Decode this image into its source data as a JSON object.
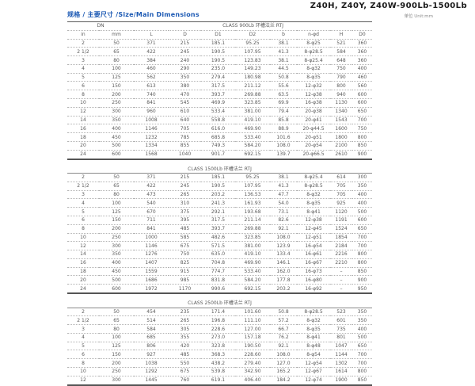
{
  "page": {
    "title": "Z40H, Z40Y, Z40W-900Lb-1500Lb",
    "section_heading": "规格 / 主要尺寸 /Size/Main Dimensions",
    "unit_label": "单位 Unit:mm"
  },
  "table": {
    "dn_label": "DN",
    "columns": [
      "in",
      "mm",
      "L",
      "D",
      "D1",
      "D2",
      "b",
      "n-φd",
      "H",
      "D0"
    ],
    "sections": [
      {
        "label": "CLASS 900Lb 环槽法兰 RTJ",
        "rows": [
          [
            "2",
            "50",
            "371",
            "215",
            "185.1",
            "95.25",
            "38.1",
            "8-φ25",
            "521",
            "360"
          ],
          [
            "2 1/2",
            "65",
            "422",
            "245",
            "190.5",
            "107.95",
            "41.3",
            "8-φ28.5",
            "584",
            "360"
          ],
          [
            "3",
            "80",
            "384",
            "240",
            "190.5",
            "123.83",
            "38.1",
            "8-φ25.4",
            "648",
            "360"
          ],
          [
            "4",
            "100",
            "460",
            "290",
            "235.0",
            "149.23",
            "44.5",
            "8-φ32",
            "750",
            "400"
          ],
          [
            "5",
            "125",
            "562",
            "350",
            "279.4",
            "180.98",
            "50.8",
            "8-φ35",
            "790",
            "460"
          ],
          [
            "6",
            "150",
            "613",
            "380",
            "317.5",
            "211.12",
            "55.6",
            "12-φ32",
            "800",
            "560"
          ],
          [
            "8",
            "200",
            "740",
            "470",
            "393.7",
            "269.88",
            "63.5",
            "12-φ38",
            "940",
            "600"
          ],
          [
            "10",
            "250",
            "841",
            "545",
            "469.9",
            "323.85",
            "69.9",
            "16-φ38",
            "1130",
            "600"
          ],
          [
            "12",
            "300",
            "960",
            "610",
            "533.4",
            "381.00",
            "79.4",
            "20-φ38",
            "1340",
            "650"
          ],
          [
            "14",
            "350",
            "1008",
            "640",
            "558.8",
            "419.10",
            "85.8",
            "20-φ41",
            "1543",
            "700"
          ],
          [
            "16",
            "400",
            "1146",
            "705",
            "616.0",
            "469.90",
            "88.9",
            "20-φ44.5",
            "1600",
            "750"
          ],
          [
            "18",
            "450",
            "1232",
            "785",
            "685.8",
            "533.40",
            "101.6",
            "20-φ51",
            "1800",
            "800"
          ],
          [
            "20",
            "500",
            "1334",
            "855",
            "749.3",
            "584.20",
            "108.0",
            "20-φ54",
            "2100",
            "850"
          ],
          [
            "24",
            "600",
            "1568",
            "1040",
            "901.7",
            "692.15",
            "139.7",
            "20-φ66.5",
            "2610",
            "900"
          ]
        ]
      },
      {
        "label": "CLASS 1500Lb 环槽法兰 RTJ",
        "rows": [
          [
            "2",
            "50",
            "371",
            "215",
            "185.1",
            "95.25",
            "38.1",
            "8-φ25.4",
            "614",
            "300"
          ],
          [
            "2 1/2",
            "65",
            "422",
            "245",
            "190.5",
            "107.95",
            "41.3",
            "8-φ28.5",
            "705",
            "350"
          ],
          [
            "3",
            "80",
            "473",
            "265",
            "203.2",
            "136.53",
            "47.7",
            "8-φ32",
            "705",
            "400"
          ],
          [
            "4",
            "100",
            "540",
            "310",
            "241.3",
            "161.93",
            "54.0",
            "8-φ35",
            "925",
            "400"
          ],
          [
            "5",
            "125",
            "670",
            "375",
            "292.1",
            "193.68",
            "73.1",
            "8-φ41",
            "1120",
            "500"
          ],
          [
            "6",
            "150",
            "711",
            "395",
            "317.5",
            "211.14",
            "82.6",
            "12-φ38",
            "1191",
            "600"
          ],
          [
            "8",
            "200",
            "841",
            "485",
            "393.7",
            "269.88",
            "92.1",
            "12-φ45",
            "1524",
            "650"
          ],
          [
            "10",
            "250",
            "1000",
            "585",
            "482.6",
            "323.85",
            "108.0",
            "12-φ51",
            "1854",
            "700"
          ],
          [
            "12",
            "300",
            "1146",
            "675",
            "571.5",
            "381.00",
            "123.9",
            "16-φ54",
            "2184",
            "700"
          ],
          [
            "14",
            "350",
            "1276",
            "750",
            "635.0",
            "419.10",
            "133.4",
            "16-φ61",
            "2216",
            "800"
          ],
          [
            "16",
            "400",
            "1407",
            "825",
            "704.8",
            "469.90",
            "146.1",
            "16-φ67",
            "2210",
            "800"
          ],
          [
            "18",
            "450",
            "1559",
            "915",
            "774.7",
            "533.40",
            "162.0",
            "16-φ73",
            "–",
            "850"
          ],
          [
            "20",
            "500",
            "1686",
            "985",
            "831.8",
            "584.20",
            "177.8",
            "16-φ80",
            "–",
            "900"
          ],
          [
            "24",
            "600",
            "1972",
            "1170",
            "990.6",
            "692.15",
            "203.2",
            "16-φ92",
            "–",
            "950"
          ]
        ]
      },
      {
        "label": "CLASS 2500Lb 环槽法兰 RTJ",
        "rows": [
          [
            "2",
            "50",
            "454",
            "235",
            "171.4",
            "101.60",
            "50.8",
            "8-φ28.5",
            "523",
            "350"
          ],
          [
            "2 1/2",
            "65",
            "514",
            "265",
            "196.8",
            "111.10",
            "57.2",
            "8-φ32",
            "601",
            "350"
          ],
          [
            "3",
            "80",
            "584",
            "305",
            "228.6",
            "127.00",
            "66.7",
            "8-φ35",
            "735",
            "400"
          ],
          [
            "4",
            "100",
            "685",
            "355",
            "273.0",
            "157.18",
            "76.2",
            "8-φ41",
            "801",
            "500"
          ],
          [
            "5",
            "125",
            "806",
            "420",
            "323.8",
            "190.50",
            "92.1",
            "8-φ48",
            "1047",
            "650"
          ],
          [
            "6",
            "150",
            "927",
            "485",
            "368.3",
            "228.60",
            "108.0",
            "8-φ54",
            "1144",
            "700"
          ],
          [
            "8",
            "200",
            "1038",
            "550",
            "438.2",
            "279.40",
            "127.0",
            "12-φ54",
            "1302",
            "700"
          ],
          [
            "10",
            "250",
            "1292",
            "675",
            "539.8",
            "342.90",
            "165.2",
            "12-φ67",
            "1614",
            "800"
          ],
          [
            "12",
            "300",
            "1445",
            "760",
            "619.1",
            "406.40",
            "184.2",
            "12-φ74",
            "1900",
            "850"
          ]
        ]
      }
    ]
  }
}
